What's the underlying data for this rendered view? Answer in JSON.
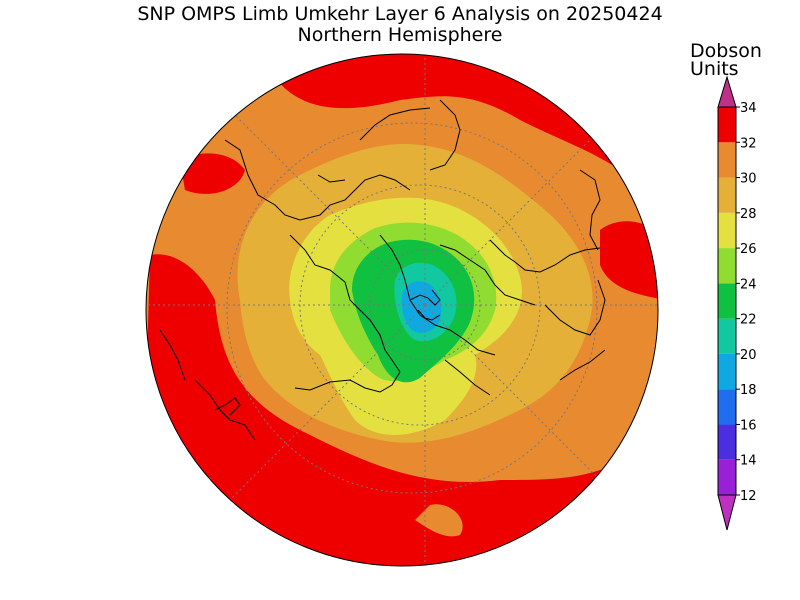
{
  "title": "SNP OMPS Limb Umkehr Layer 6 Analysis on 20250424",
  "subtitle": "Northern Hemisphere",
  "units_line1": "Dobson",
  "units_line2": "Units",
  "colorbar": {
    "levels": [
      "12",
      "14",
      "16",
      "18",
      "20",
      "22",
      "24",
      "26",
      "28",
      "30",
      "32",
      "34"
    ],
    "colors": [
      "#9a20d8",
      "#4a2ee0",
      "#1f6ef0",
      "#10a8e0",
      "#12c8a0",
      "#10c040",
      "#90dc30",
      "#e4e040",
      "#e4b038",
      "#e88a30",
      "#ee0000"
    ],
    "over_color": "#c0308a",
    "under_color": "#c030c0"
  },
  "map": {
    "projection": "north-polar-stereographic",
    "ozone_min_location": "north-pole",
    "ocean_land_outline_color": "#000000"
  }
}
